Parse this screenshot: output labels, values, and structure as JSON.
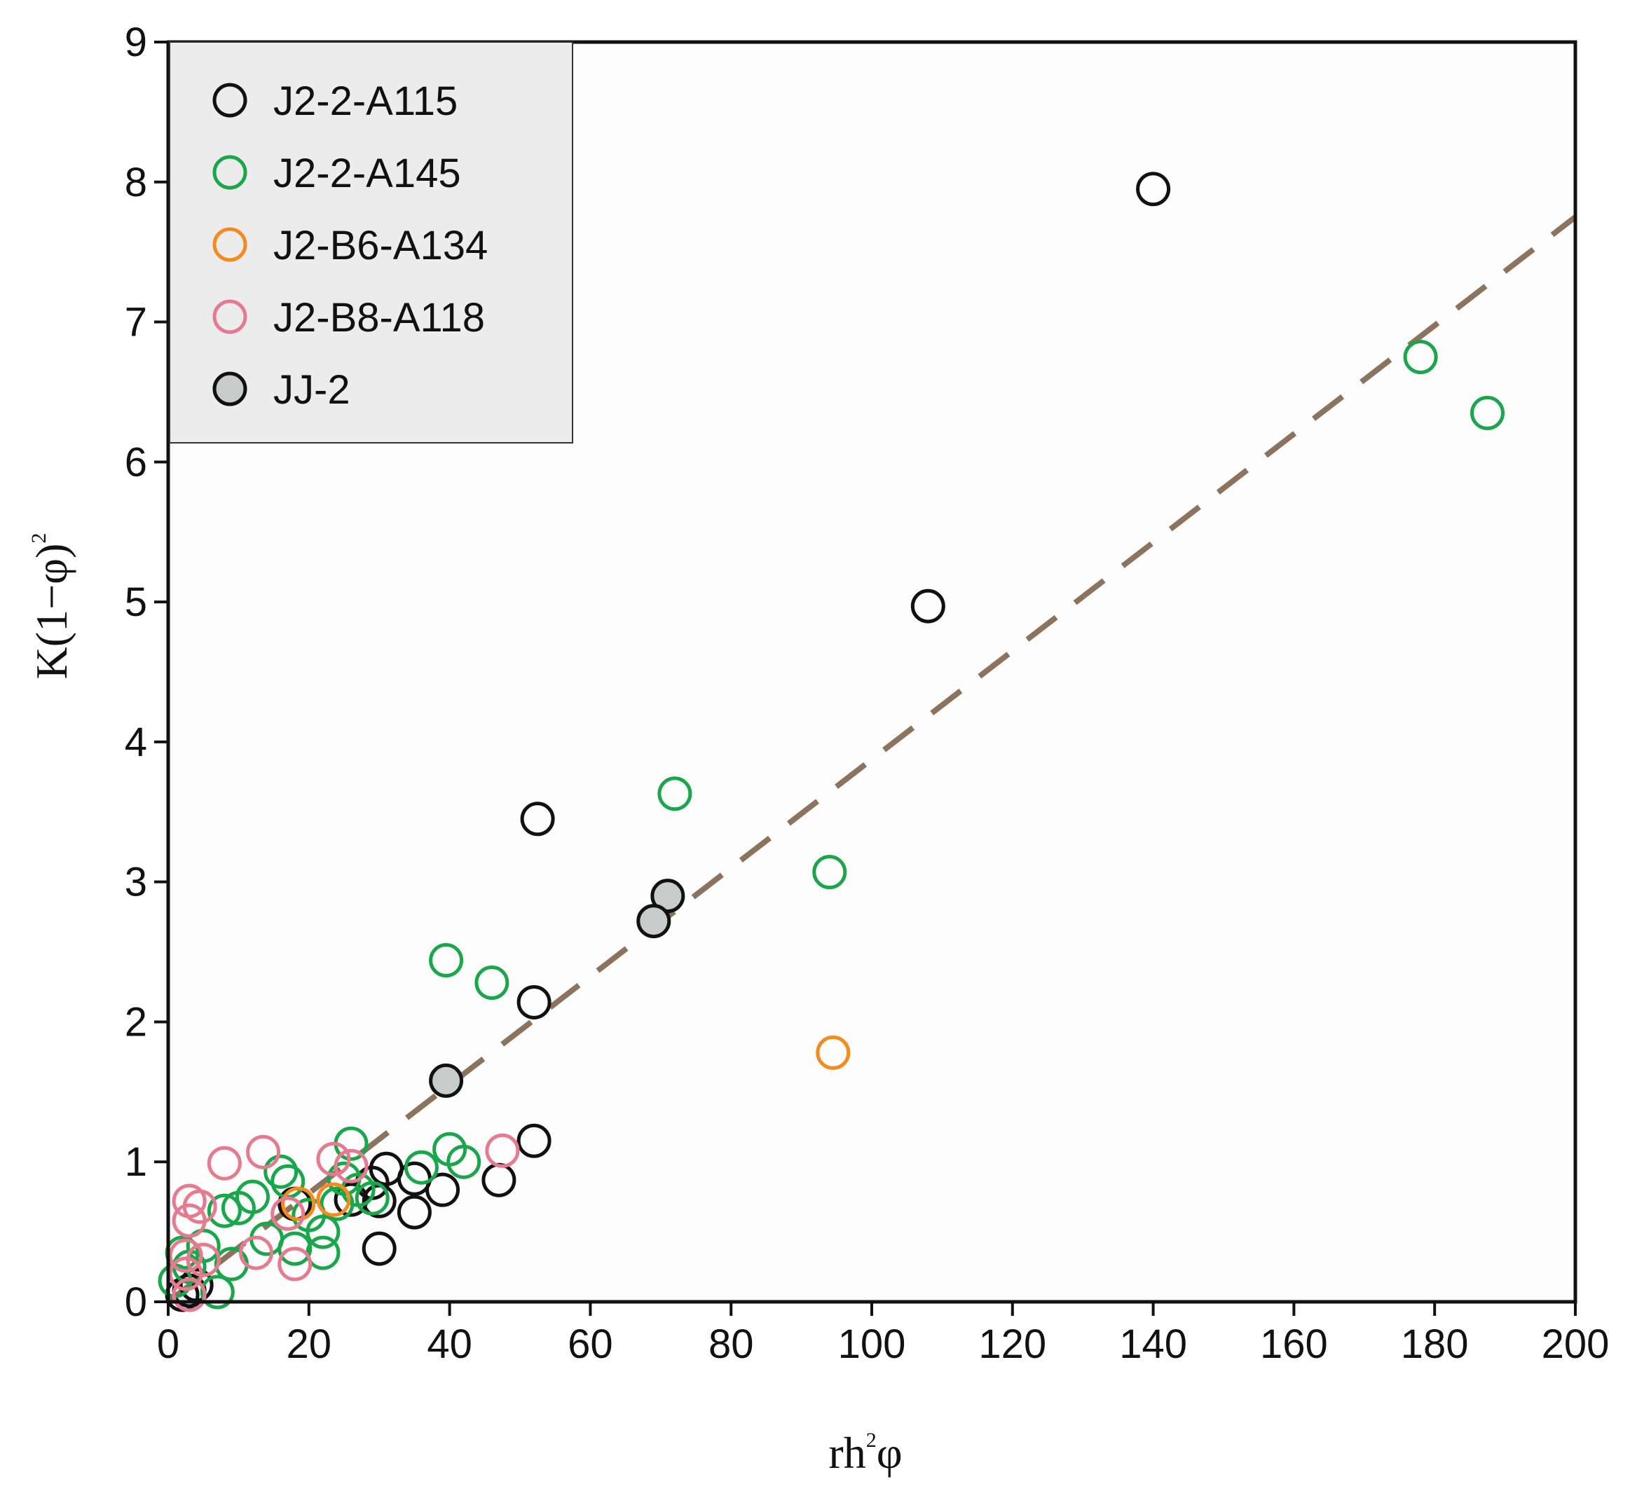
{
  "chart_data": {
    "type": "scatter",
    "title": "",
    "xlabel": {
      "pre": "rh",
      "sup": "2",
      "post": "φ"
    },
    "ylabel": {
      "pre": "K(1−φ)",
      "sup": "2"
    },
    "xlim": [
      0,
      200
    ],
    "ylim": [
      0,
      9
    ],
    "xticks": [
      0,
      20,
      40,
      60,
      80,
      100,
      120,
      140,
      160,
      180,
      200
    ],
    "yticks": [
      0,
      1,
      2,
      3,
      4,
      5,
      6,
      7,
      8,
      9
    ],
    "grid": false,
    "legend_position": "top-left",
    "trendline": {
      "style": "dashed",
      "color": "#8b735e",
      "x": [
        0,
        200
      ],
      "y": [
        0,
        7.75
      ]
    },
    "series": [
      {
        "name": "J2-2-A115",
        "stroke": "#111111",
        "fill": "none",
        "points": [
          [
            140,
            7.95
          ],
          [
            108,
            4.97
          ],
          [
            52.5,
            3.45
          ],
          [
            52,
            2.14
          ],
          [
            52,
            1.15
          ],
          [
            47,
            0.87
          ],
          [
            39,
            0.8
          ],
          [
            35,
            0.64
          ],
          [
            35,
            0.88
          ],
          [
            31,
            0.95
          ],
          [
            30,
            0.72
          ],
          [
            30,
            0.38
          ],
          [
            29,
            0.85
          ],
          [
            26,
            0.73
          ],
          [
            18,
            0.7
          ],
          [
            4,
            0.12
          ],
          [
            3,
            0.08
          ],
          [
            2,
            0.05
          ]
        ]
      },
      {
        "name": "J2-2-A145",
        "stroke": "#1aa64a",
        "fill": "none",
        "points": [
          [
            178,
            6.75
          ],
          [
            187.5,
            6.35
          ],
          [
            72,
            3.63
          ],
          [
            94,
            3.07
          ],
          [
            39.5,
            2.44
          ],
          [
            46,
            2.28
          ],
          [
            26,
            1.13
          ],
          [
            40,
            1.09
          ],
          [
            42,
            1.0
          ],
          [
            36,
            0.96
          ],
          [
            16,
            0.93
          ],
          [
            17,
            0.86
          ],
          [
            12,
            0.75
          ],
          [
            10,
            0.67
          ],
          [
            8,
            0.65
          ],
          [
            20,
            0.62
          ],
          [
            22,
            0.5
          ],
          [
            29,
            0.74
          ],
          [
            27,
            0.8
          ],
          [
            24,
            0.7
          ],
          [
            14,
            0.45
          ],
          [
            22,
            0.35
          ],
          [
            18,
            0.38
          ],
          [
            9,
            0.27
          ],
          [
            7,
            0.07
          ],
          [
            1,
            0.15
          ],
          [
            2,
            0.35
          ],
          [
            3,
            0.25
          ],
          [
            5,
            0.4
          ],
          [
            25,
            0.88
          ]
        ]
      },
      {
        "name": "J2-B6-A134",
        "stroke": "#f58a1f",
        "fill": "none",
        "points": [
          [
            94.5,
            1.78
          ],
          [
            18.5,
            0.7
          ],
          [
            23.5,
            0.73
          ]
        ]
      },
      {
        "name": "J2-B8-A118",
        "stroke": "#e67a8e",
        "fill": "none",
        "points": [
          [
            13.5,
            1.07
          ],
          [
            8,
            0.99
          ],
          [
            23.5,
            1.02
          ],
          [
            47.5,
            1.08
          ],
          [
            26,
            0.97
          ],
          [
            3,
            0.72
          ],
          [
            4.5,
            0.68
          ],
          [
            3,
            0.58
          ],
          [
            17,
            0.63
          ],
          [
            18,
            0.27
          ],
          [
            12.5,
            0.35
          ],
          [
            2.5,
            0.33
          ],
          [
            5,
            0.3
          ],
          [
            2.5,
            0.2
          ],
          [
            3,
            0.05
          ]
        ]
      },
      {
        "name": "JJ-2",
        "stroke": "#111111",
        "fill": "#c9cbca",
        "points": [
          [
            71,
            2.9
          ],
          [
            69,
            2.72
          ],
          [
            39.5,
            1.58
          ]
        ]
      }
    ]
  }
}
